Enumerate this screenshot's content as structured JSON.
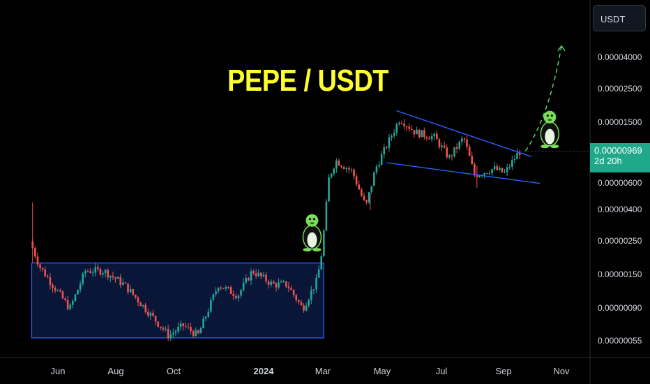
{
  "header": {
    "currency_badge": "USDT"
  },
  "chart_data": {
    "type": "candlestick",
    "title": "PEPE / USDT",
    "y_scale": "log",
    "y_ticks": [
      {
        "label": "0.00004000",
        "value": 4e-05
      },
      {
        "label": "0.00002500",
        "value": 2.5e-05
      },
      {
        "label": "0.00001500",
        "value": 1.5e-05
      },
      {
        "label": "0.00000600",
        "value": 6e-06
      },
      {
        "label": "0.00000400",
        "value": 4e-06
      },
      {
        "label": "0.00000250",
        "value": 2.5e-06
      },
      {
        "label": "0.00000150",
        "value": 1.5e-06
      },
      {
        "label": "0.00000090",
        "value": 9e-07
      },
      {
        "label": "0.00000055",
        "value": 5.5e-07
      }
    ],
    "x_ticks": [
      "Jun",
      "Aug",
      "Oct",
      "2024",
      "Mar",
      "May",
      "Jul",
      "Sep",
      "Nov"
    ],
    "x_range": [
      "2023-05-01",
      "2024-11-20"
    ],
    "current_price": {
      "label": "0.00000969",
      "value": 9.69e-06,
      "countdown": "2d 20h"
    },
    "colors": {
      "up": "#26a69a",
      "down": "#ef5350",
      "trendline": "#2962ff",
      "range_box": "#2962ff",
      "projection": "#4cd964"
    },
    "price_path": [
      [
        "2023-05-05",
        2.5e-06
      ],
      [
        "2023-05-15",
        1.7e-06
      ],
      [
        "2023-06-01",
        1.2e-06
      ],
      [
        "2023-06-15",
        9e-07
      ],
      [
        "2023-07-01",
        1.6e-06
      ],
      [
        "2023-07-20",
        1.6e-06
      ],
      [
        "2023-08-10",
        1.3e-06
      ],
      [
        "2023-09-01",
        9e-07
      ],
      [
        "2023-09-25",
        6e-07
      ],
      [
        "2023-10-10",
        7e-07
      ],
      [
        "2023-10-25",
        6e-07
      ],
      [
        "2023-11-15",
        1.3e-06
      ],
      [
        "2023-12-05",
        1.1e-06
      ],
      [
        "2023-12-20",
        1.6e-06
      ],
      [
        "2024-01-10",
        1.3e-06
      ],
      [
        "2024-01-25",
        1.3e-06
      ],
      [
        "2024-02-10",
        9e-07
      ],
      [
        "2024-02-25",
        1.4e-06
      ],
      [
        "2024-03-01",
        2.2e-06
      ],
      [
        "2024-03-08",
        6.5e-06
      ],
      [
        "2024-03-15",
        8.5e-06
      ],
      [
        "2024-04-01",
        7.2e-06
      ],
      [
        "2024-04-15",
        4.2e-06
      ],
      [
        "2024-04-25",
        7.5e-06
      ],
      [
        "2024-05-20",
        1.6e-05
      ],
      [
        "2024-06-05",
        1.3e-05
      ],
      [
        "2024-06-25",
        1.2e-05
      ],
      [
        "2024-07-10",
        8.8e-06
      ],
      [
        "2024-07-25",
        1.2e-05
      ],
      [
        "2024-08-05",
        6.8e-06
      ],
      [
        "2024-08-25",
        7.5e-06
      ],
      [
        "2024-09-05",
        7e-06
      ],
      [
        "2024-09-20",
        9.69e-06
      ]
    ],
    "annotations": {
      "accumulation_range": {
        "x0": "2023-05-05",
        "x1": "2024-03-01",
        "y_low": 5.8e-07,
        "y_high": 1.8e-06
      },
      "falling_wedge_upper": [
        [
          "2024-05-15",
          1.8e-05
        ],
        [
          "2024-10-01",
          9e-06
        ]
      ],
      "falling_wedge_lower": [
        [
          "2024-05-05",
          8.2e-06
        ],
        [
          "2024-10-10",
          6e-06
        ]
      ],
      "projection_path": [
        [
          "2024-09-25",
          9.8e-06
        ],
        [
          "2024-10-20",
          1.7e-05
        ],
        [
          "2024-11-01",
          4.8e-05
        ]
      ],
      "mascots": [
        {
          "date": "2024-02-18",
          "price": 2.2e-06,
          "name": "pepe-mascot-breakout"
        },
        {
          "date": "2024-10-20",
          "price": 1.05e-05,
          "name": "pepe-mascot-current"
        }
      ]
    }
  }
}
